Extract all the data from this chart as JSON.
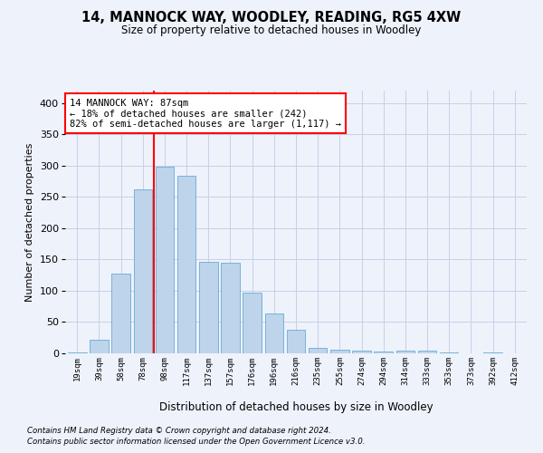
{
  "title": "14, MANNOCK WAY, WOODLEY, READING, RG5 4XW",
  "subtitle": "Size of property relative to detached houses in Woodley",
  "xlabel": "Distribution of detached houses by size in Woodley",
  "ylabel": "Number of detached properties",
  "bar_labels": [
    "19sqm",
    "39sqm",
    "58sqm",
    "78sqm",
    "98sqm",
    "117sqm",
    "137sqm",
    "157sqm",
    "176sqm",
    "196sqm",
    "216sqm",
    "235sqm",
    "255sqm",
    "274sqm",
    "294sqm",
    "314sqm",
    "333sqm",
    "353sqm",
    "373sqm",
    "392sqm",
    "412sqm"
  ],
  "bar_values": [
    2,
    22,
    128,
    262,
    298,
    284,
    146,
    145,
    97,
    64,
    38,
    8,
    6,
    5,
    3,
    5,
    4,
    2,
    0,
    1,
    0
  ],
  "bar_color": "#bdd4eb",
  "bar_edge_color": "#6aaad4",
  "vline_x": 3.5,
  "vline_color": "red",
  "annotation_text": "14 MANNOCK WAY: 87sqm\n← 18% of detached houses are smaller (242)\n82% of semi-detached houses are larger (1,117) →",
  "annotation_box_color": "white",
  "annotation_box_edge": "red",
  "ylim": [
    0,
    420
  ],
  "yticks": [
    0,
    50,
    100,
    150,
    200,
    250,
    300,
    350,
    400
  ],
  "footnote1": "Contains HM Land Registry data © Crown copyright and database right 2024.",
  "footnote2": "Contains public sector information licensed under the Open Government Licence v3.0.",
  "background_color": "#eef2fb",
  "grid_color": "#c8cfe8"
}
